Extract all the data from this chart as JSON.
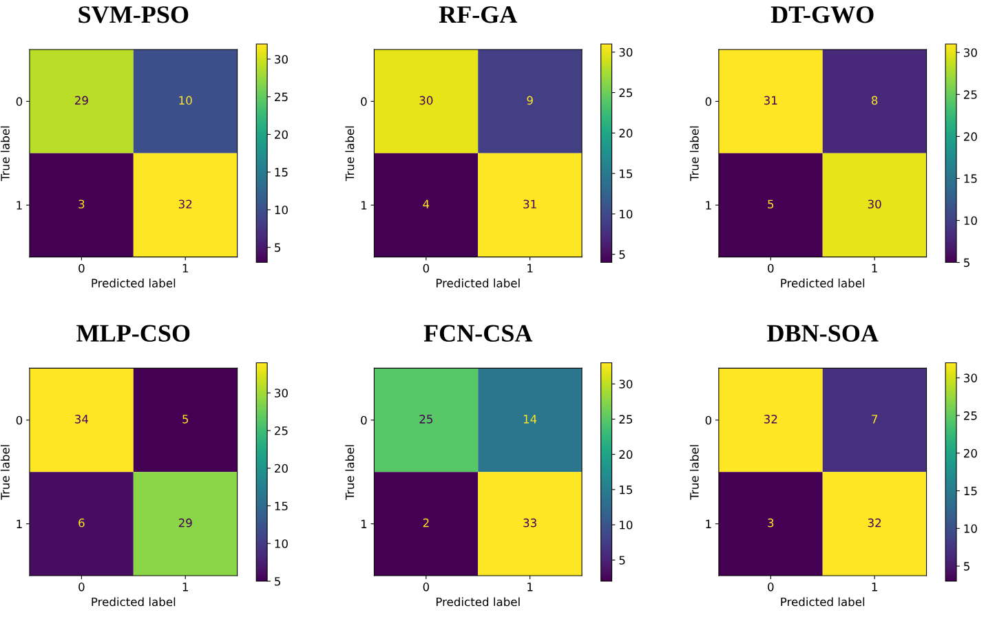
{
  "chart_data": [
    {
      "type": "heatmap",
      "title": "SVM-PSO",
      "xlabel": "Predicted label",
      "ylabel": "True label",
      "categories": [
        "0",
        "1"
      ],
      "y_categories": [
        "0",
        "1"
      ],
      "cells": [
        [
          29,
          10
        ],
        [
          3,
          32
        ]
      ],
      "data_labels": true,
      "clim": [
        3,
        32
      ],
      "cticks": [
        5,
        10,
        15,
        20,
        25,
        30
      ]
    },
    {
      "type": "heatmap",
      "title": "RF-GA",
      "xlabel": "Predicted label",
      "ylabel": "True label",
      "categories": [
        "0",
        "1"
      ],
      "y_categories": [
        "0",
        "1"
      ],
      "cells": [
        [
          30,
          9
        ],
        [
          4,
          31
        ]
      ],
      "data_labels": true,
      "clim": [
        4,
        31
      ],
      "cticks": [
        5,
        10,
        15,
        20,
        25,
        30
      ]
    },
    {
      "type": "heatmap",
      "title": "DT-GWO",
      "xlabel": "Predicted label",
      "ylabel": "True label",
      "categories": [
        "0",
        "1"
      ],
      "y_categories": [
        "0",
        "1"
      ],
      "cells": [
        [
          31,
          8
        ],
        [
          5,
          30
        ]
      ],
      "data_labels": true,
      "clim": [
        5,
        31
      ],
      "cticks": [
        5,
        10,
        15,
        20,
        25,
        30
      ]
    },
    {
      "type": "heatmap",
      "title": "MLP-CSO",
      "xlabel": "Predicted label",
      "ylabel": "True label",
      "categories": [
        "0",
        "1"
      ],
      "y_categories": [
        "0",
        "1"
      ],
      "cells": [
        [
          34,
          5
        ],
        [
          6,
          29
        ]
      ],
      "data_labels": true,
      "clim": [
        5,
        34
      ],
      "cticks": [
        5,
        10,
        15,
        20,
        25,
        30
      ]
    },
    {
      "type": "heatmap",
      "title": "FCN-CSA",
      "xlabel": "Predicted label",
      "ylabel": "True label",
      "categories": [
        "0",
        "1"
      ],
      "y_categories": [
        "0",
        "1"
      ],
      "cells": [
        [
          25,
          14
        ],
        [
          2,
          33
        ]
      ],
      "data_labels": true,
      "clim": [
        2,
        33
      ],
      "cticks": [
        5,
        10,
        15,
        20,
        25,
        30
      ]
    },
    {
      "type": "heatmap",
      "title": "DBN-SOA",
      "xlabel": "Predicted label",
      "ylabel": "True label",
      "categories": [
        "0",
        "1"
      ],
      "y_categories": [
        "0",
        "1"
      ],
      "cells": [
        [
          32,
          7
        ],
        [
          3,
          32
        ]
      ],
      "data_labels": true,
      "clim": [
        3,
        32
      ],
      "cticks": [
        5,
        10,
        15,
        20,
        25,
        30
      ]
    }
  ]
}
